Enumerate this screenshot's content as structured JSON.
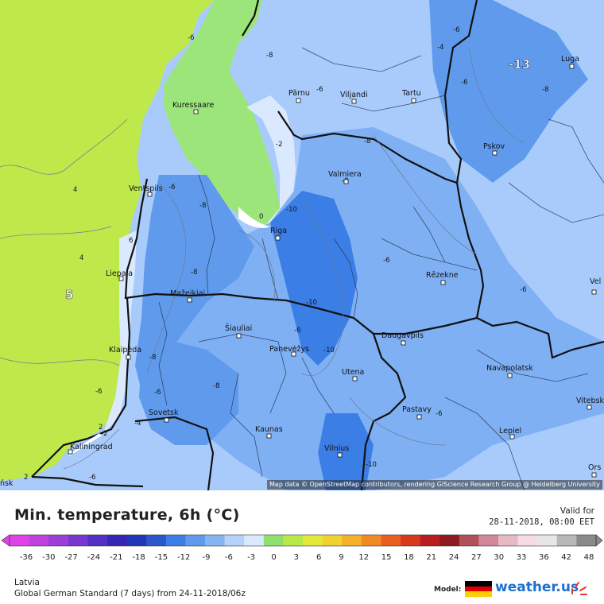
{
  "map": {
    "attribution": "Map data © OpenStreetMap contributors, rendering GIScience Research Group @ Heidelberg University",
    "colors": {
      "sea_warm": "#bfe84a",
      "land_warm": "#9be57a",
      "very_light": "#dbe9ff",
      "light_blue": "#a9cbfb",
      "mid_blue": "#7fb0f3",
      "blue": "#5f9aec",
      "deep_blue": "#3b7ee6",
      "coast_water": "#ffffff"
    },
    "cities": [
      {
        "name": "Pärnu"
      },
      {
        "name": "Viljandi"
      },
      {
        "name": "Tartu"
      },
      {
        "name": "Luga"
      },
      {
        "name": "Kuressaare"
      },
      {
        "name": "Pskov"
      },
      {
        "name": "Valmiera"
      },
      {
        "name": "Ventspils"
      },
      {
        "name": "Riga"
      },
      {
        "name": "Liepaja"
      },
      {
        "name": "Rēzekne"
      },
      {
        "name": "Mažeikiai"
      },
      {
        "name": "Šiauliai"
      },
      {
        "name": "Panevėžys"
      },
      {
        "name": "Daugavpils"
      },
      {
        "name": "Klaipėda"
      },
      {
        "name": "Utena"
      },
      {
        "name": "Navapolatsk"
      },
      {
        "name": "Sovetsk"
      },
      {
        "name": "Pastavy"
      },
      {
        "name": "Kaunas"
      },
      {
        "name": "Lepiel"
      },
      {
        "name": "Vilnius"
      },
      {
        "name": "Kaliningrad"
      },
      {
        "name": "Vitebsk"
      },
      {
        "name": "Vel"
      },
      {
        "name": "Ors"
      },
      {
        "name": "ńsk"
      }
    ],
    "contour_labels": [
      "-6",
      "-8",
      "-4",
      "-6",
      "-6",
      "-8",
      "-6",
      "-2",
      "-8",
      "-6",
      "0",
      "-10",
      "-8",
      "-6",
      "6",
      "4",
      "4",
      "-6",
      "-8",
      "-10",
      "-8",
      "-10",
      "-6",
      "-8",
      "-6",
      "-6",
      "-4",
      "-2",
      "2",
      "-6",
      "2",
      "-10",
      "-6",
      "-8"
    ],
    "big_label": "-13",
    "warm_label": "5"
  },
  "legend": {
    "title": "Min. temperature, 6h (°C)",
    "valid_for": "Valid for",
    "valid_time": "28-11-2018, 08:00 EET",
    "ticks": [
      "-36",
      "-30",
      "-27",
      "-24",
      "-21",
      "-18",
      "-15",
      "-12",
      "-9",
      "-6",
      "-3",
      "0",
      "3",
      "6",
      "9",
      "12",
      "15",
      "18",
      "21",
      "24",
      "27",
      "30",
      "33",
      "36",
      "42",
      "48"
    ],
    "colors": [
      "#e042e8",
      "#c040e0",
      "#9c3fd8",
      "#7838cf",
      "#5530c4",
      "#3626b6",
      "#2038b8",
      "#2a58cc",
      "#3b7ee6",
      "#5f9aec",
      "#84b6f5",
      "#b5d3fa",
      "#dbe9ff",
      "#90e070",
      "#b8e84a",
      "#e2e83a",
      "#f2d030",
      "#f4b02a",
      "#f08a26",
      "#e86020",
      "#d8381c",
      "#b81e1e",
      "#8e1a22",
      "#b05058",
      "#d08898",
      "#e8b8c4",
      "#f4dce2",
      "#e6e6e6",
      "#b8b8b8",
      "#8a8a8a"
    ],
    "region": "Latvia",
    "model_line": "Global German Standard (7 days) from 24-11-2018/06z",
    "model_label": "Model:",
    "brand": "weather.us",
    "flag_colors": [
      "#000000",
      "#dd0000",
      "#ffce00"
    ]
  }
}
